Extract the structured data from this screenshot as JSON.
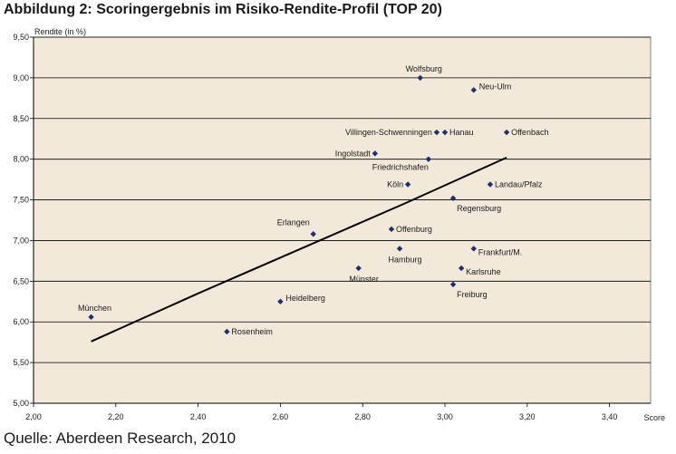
{
  "title": "Abbildung 2: Scoringergebnis im Risiko-Rendite-Profil (TOP 20)",
  "source": "Quelle: Aberdeen Research, 2010",
  "colors": {
    "plot_bg": "#f3e9db",
    "marker": "#1f2f6b",
    "grid": "#000000",
    "trend": "#000000"
  },
  "chart_data": {
    "type": "scatter",
    "xlabel": "Score",
    "ylabel": "Rendite (in %)",
    "xlim": [
      2.0,
      3.5
    ],
    "ylim": [
      5.0,
      9.5
    ],
    "x_ticks": [
      "2,00",
      "2,20",
      "2,40",
      "2,60",
      "2,80",
      "3,00",
      "3,20",
      "3,40"
    ],
    "y_ticks": [
      "5,00",
      "5,50",
      "6,00",
      "6,50",
      "7,00",
      "7,50",
      "8,00",
      "8,50",
      "9,00",
      "9,50"
    ],
    "grid": "horizontal",
    "points": [
      {
        "label": "Wolfsburg",
        "x": 2.94,
        "y": 9.0,
        "pos": "above"
      },
      {
        "label": "Neu-Ulm",
        "x": 3.07,
        "y": 8.85,
        "pos": "right-up"
      },
      {
        "label": "Villingen-Schwenningen",
        "x": 2.98,
        "y": 8.33,
        "pos": "left"
      },
      {
        "label": "Hanau",
        "x": 3.0,
        "y": 8.33,
        "pos": "right"
      },
      {
        "label": "Offenbach",
        "x": 3.15,
        "y": 8.33,
        "pos": "right"
      },
      {
        "label": "Ingolstadt",
        "x": 2.83,
        "y": 8.07,
        "pos": "left"
      },
      {
        "label": "Friedrichshafen",
        "x": 2.96,
        "y": 8.0,
        "pos": "below-left"
      },
      {
        "label": "Köln",
        "x": 2.91,
        "y": 7.69,
        "pos": "left"
      },
      {
        "label": "Landau/Pfalz",
        "x": 3.11,
        "y": 7.69,
        "pos": "right"
      },
      {
        "label": "Regensburg",
        "x": 3.02,
        "y": 7.52,
        "pos": "below-right"
      },
      {
        "label": "Erlangen",
        "x": 2.68,
        "y": 7.08,
        "pos": "above-left"
      },
      {
        "label": "Offenburg",
        "x": 2.87,
        "y": 7.14,
        "pos": "right"
      },
      {
        "label": "Hamburg",
        "x": 2.89,
        "y": 6.9,
        "pos": "below"
      },
      {
        "label": "Frankfurt/M.",
        "x": 3.07,
        "y": 6.9,
        "pos": "right-down"
      },
      {
        "label": "Münster",
        "x": 2.79,
        "y": 6.66,
        "pos": "below"
      },
      {
        "label": "Karlsruhe",
        "x": 3.04,
        "y": 6.66,
        "pos": "right-down"
      },
      {
        "label": "Freiburg",
        "x": 3.02,
        "y": 6.46,
        "pos": "below-right"
      },
      {
        "label": "Heidelberg",
        "x": 2.6,
        "y": 6.25,
        "pos": "right-up"
      },
      {
        "label": "München",
        "x": 2.14,
        "y": 6.06,
        "pos": "above"
      },
      {
        "label": "Rosenheim",
        "x": 2.47,
        "y": 5.88,
        "pos": "right"
      }
    ],
    "trendline": [
      {
        "x": 2.14,
        "y": 5.76
      },
      {
        "x": 2.4,
        "y": 6.35
      },
      {
        "x": 2.65,
        "y": 6.9
      },
      {
        "x": 2.9,
        "y": 7.45
      },
      {
        "x": 3.15,
        "y": 8.02
      }
    ]
  }
}
